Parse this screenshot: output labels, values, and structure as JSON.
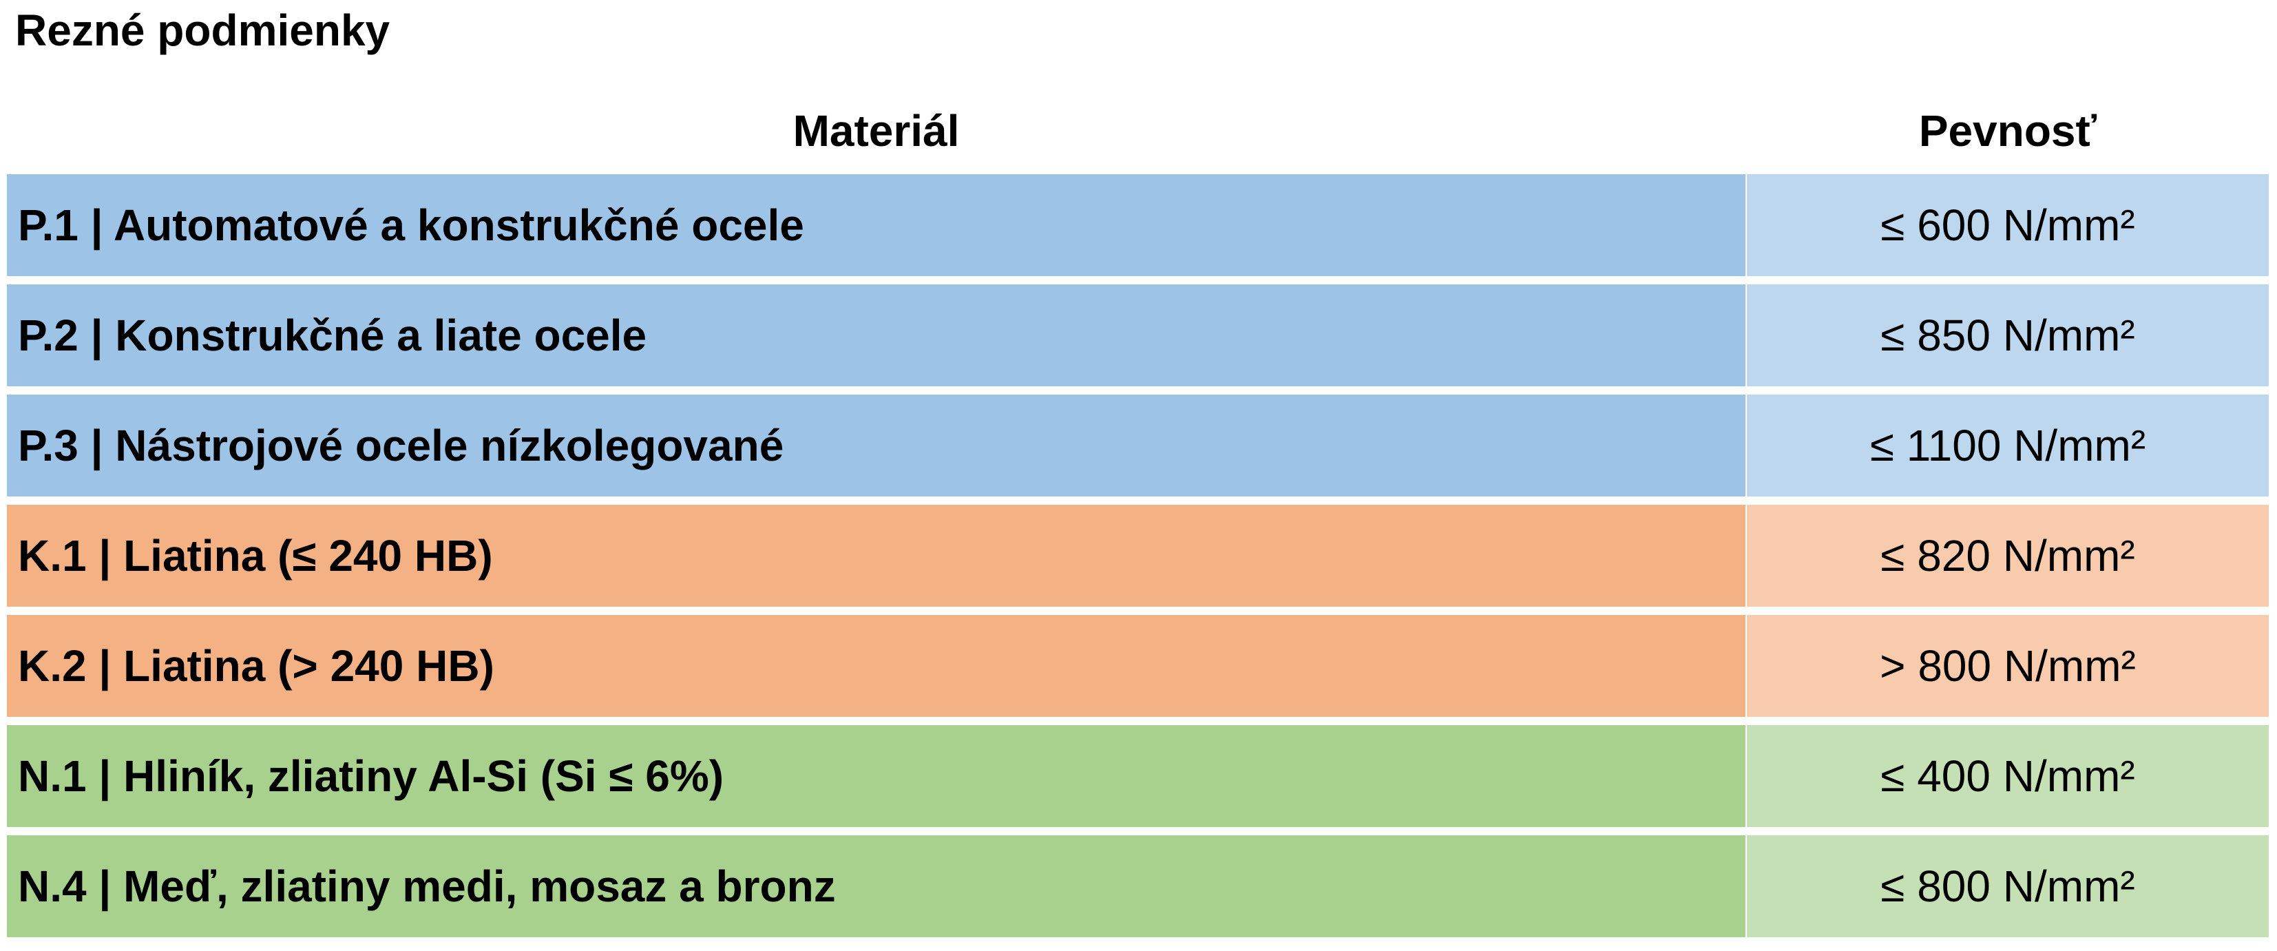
{
  "title": "Rezné podmienky",
  "table": {
    "header": [
      "Materiál",
      "Pevnosť"
    ],
    "rows": [
      [
        "P.1 | Automatové a konstrukčné ocele",
        "≤ 600 N/mm²"
      ],
      [
        "P.2 | Konstrukčné a liate ocele",
        "≤ 850 N/mm²"
      ],
      [
        "P.3 | Nástrojové ocele nízkolegované",
        "≤ 1100 N/mm²"
      ],
      [
        "K.1 | Liatina (≤ 240 HB)",
        "≤ 820 N/mm²"
      ],
      [
        "K.2 | Liatina (> 240 HB)",
        "> 800 N/mm²"
      ],
      [
        "N.1 | Hliník, zliatiny Al-Si (Si ≤ 6%)",
        "≤ 400 N/mm²"
      ],
      [
        "N.4 | Meď, zliatiny medi, mosaz a bronz",
        "≤ 800 N/mm²"
      ]
    ]
  }
}
